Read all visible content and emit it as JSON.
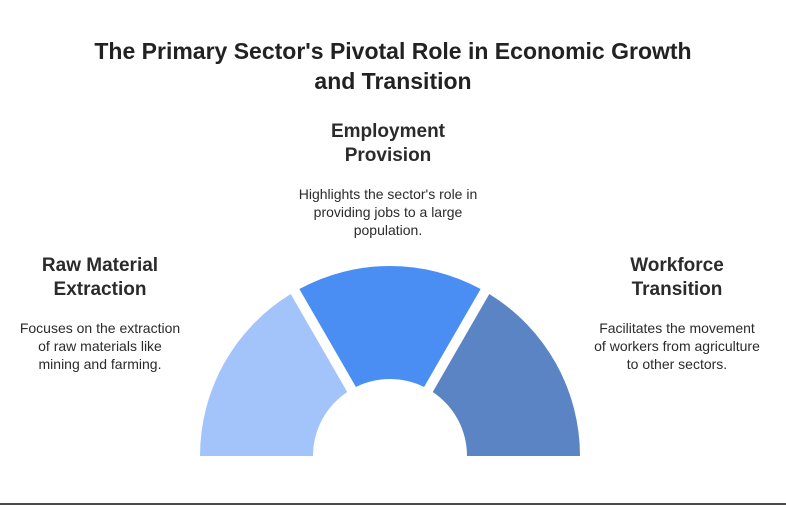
{
  "title": "The Primary Sector's Pivotal Role in Economic Growth and Transition",
  "segments": [
    {
      "heading": "Raw Material Extraction",
      "description": "Focuses on the extraction of raw materials like mining and farming.",
      "color": "#a3c4fb"
    },
    {
      "heading": "Employment Provision",
      "description": "Highlights the sector's role in providing jobs to a large population.",
      "color": "#4a8ef3"
    },
    {
      "heading": "Workforce Transition",
      "description": "Facilitates the movement of workers from agriculture to other sectors.",
      "color": "#5b84c4"
    }
  ]
}
